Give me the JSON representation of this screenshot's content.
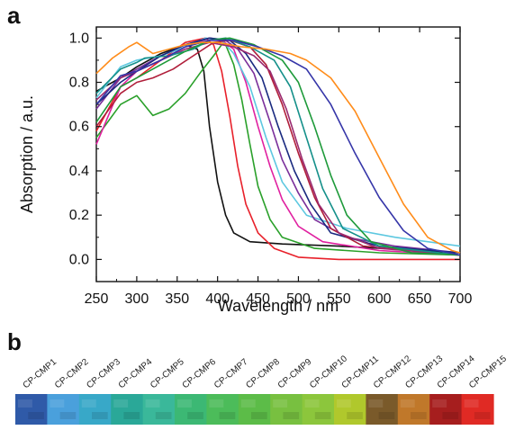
{
  "panels": {
    "a": "a",
    "b": "b"
  },
  "chart_data": {
    "type": "line",
    "xlabel": "Wavelength / nm",
    "ylabel": "Absorption / a.u.",
    "xlim": [
      250,
      700
    ],
    "ylim": [
      -0.1,
      1.05
    ],
    "xticks": [
      250,
      300,
      350,
      400,
      450,
      500,
      550,
      600,
      650,
      700
    ],
    "yticks": [
      0.0,
      0.2,
      0.4,
      0.6,
      0.8,
      1.0
    ],
    "grid": false,
    "legend": "none",
    "series": [
      {
        "color": "#111111",
        "points": [
          [
            250,
            0.76
          ],
          [
            280,
            0.82
          ],
          [
            300,
            0.87
          ],
          [
            330,
            0.93
          ],
          [
            360,
            0.97
          ],
          [
            375,
            0.95
          ],
          [
            383,
            0.85
          ],
          [
            390,
            0.6
          ],
          [
            400,
            0.35
          ],
          [
            410,
            0.2
          ],
          [
            420,
            0.12
          ],
          [
            440,
            0.08
          ],
          [
            480,
            0.07
          ],
          [
            550,
            0.06
          ],
          [
            650,
            0.04
          ],
          [
            700,
            0.03
          ]
        ]
      },
      {
        "color": "#e8202a",
        "points": [
          [
            250,
            0.58
          ],
          [
            280,
            0.78
          ],
          [
            300,
            0.82
          ],
          [
            330,
            0.9
          ],
          [
            360,
            0.98
          ],
          [
            385,
            1.0
          ],
          [
            395,
            0.97
          ],
          [
            405,
            0.85
          ],
          [
            415,
            0.65
          ],
          [
            425,
            0.42
          ],
          [
            435,
            0.25
          ],
          [
            450,
            0.12
          ],
          [
            470,
            0.05
          ],
          [
            500,
            0.01
          ],
          [
            550,
            0.0
          ],
          [
            700,
            0.0
          ]
        ]
      },
      {
        "color": "#2aa02a",
        "points": [
          [
            250,
            0.55
          ],
          [
            280,
            0.7
          ],
          [
            300,
            0.74
          ],
          [
            320,
            0.65
          ],
          [
            340,
            0.68
          ],
          [
            360,
            0.75
          ],
          [
            380,
            0.85
          ],
          [
            395,
            0.92
          ],
          [
            405,
            0.97
          ],
          [
            410,
            0.97
          ],
          [
            420,
            0.88
          ],
          [
            430,
            0.72
          ],
          [
            440,
            0.52
          ],
          [
            450,
            0.33
          ],
          [
            465,
            0.18
          ],
          [
            480,
            0.1
          ],
          [
            520,
            0.05
          ],
          [
            600,
            0.03
          ],
          [
            700,
            0.02
          ]
        ]
      },
      {
        "color": "#e020a0",
        "points": [
          [
            250,
            0.52
          ],
          [
            280,
            0.78
          ],
          [
            300,
            0.85
          ],
          [
            330,
            0.9
          ],
          [
            360,
            0.96
          ],
          [
            390,
            1.0
          ],
          [
            405,
            0.99
          ],
          [
            420,
            0.95
          ],
          [
            435,
            0.8
          ],
          [
            450,
            0.6
          ],
          [
            465,
            0.42
          ],
          [
            480,
            0.27
          ],
          [
            500,
            0.15
          ],
          [
            530,
            0.08
          ],
          [
            600,
            0.04
          ],
          [
            700,
            0.02
          ]
        ]
      },
      {
        "color": "#5dc8e0",
        "points": [
          [
            250,
            0.73
          ],
          [
            280,
            0.87
          ],
          [
            300,
            0.9
          ],
          [
            330,
            0.92
          ],
          [
            360,
            0.96
          ],
          [
            385,
            1.0
          ],
          [
            405,
            0.99
          ],
          [
            420,
            0.93
          ],
          [
            440,
            0.78
          ],
          [
            460,
            0.55
          ],
          [
            480,
            0.35
          ],
          [
            510,
            0.2
          ],
          [
            560,
            0.14
          ],
          [
            620,
            0.1
          ],
          [
            700,
            0.06
          ]
        ]
      },
      {
        "color": "#7a2f9a",
        "points": [
          [
            250,
            0.68
          ],
          [
            280,
            0.82
          ],
          [
            300,
            0.86
          ],
          [
            330,
            0.92
          ],
          [
            360,
            0.97
          ],
          [
            390,
            1.0
          ],
          [
            410,
            0.99
          ],
          [
            425,
            0.95
          ],
          [
            445,
            0.84
          ],
          [
            465,
            0.62
          ],
          [
            480,
            0.45
          ],
          [
            500,
            0.3
          ],
          [
            520,
            0.18
          ],
          [
            560,
            0.1
          ],
          [
            620,
            0.06
          ],
          [
            700,
            0.03
          ]
        ]
      },
      {
        "color": "#1a2a80",
        "points": [
          [
            250,
            0.7
          ],
          [
            280,
            0.8
          ],
          [
            300,
            0.85
          ],
          [
            330,
            0.92
          ],
          [
            360,
            0.97
          ],
          [
            390,
            1.0
          ],
          [
            415,
            0.99
          ],
          [
            435,
            0.93
          ],
          [
            455,
            0.82
          ],
          [
            475,
            0.6
          ],
          [
            495,
            0.4
          ],
          [
            515,
            0.25
          ],
          [
            540,
            0.12
          ],
          [
            600,
            0.06
          ],
          [
            700,
            0.03
          ]
        ]
      },
      {
        "color": "#b01e3a",
        "points": [
          [
            250,
            0.6
          ],
          [
            280,
            0.75
          ],
          [
            300,
            0.8
          ],
          [
            320,
            0.82
          ],
          [
            345,
            0.86
          ],
          [
            370,
            0.92
          ],
          [
            395,
            0.98
          ],
          [
            415,
            0.99
          ],
          [
            440,
            0.96
          ],
          [
            460,
            0.88
          ],
          [
            480,
            0.7
          ],
          [
            500,
            0.48
          ],
          [
            520,
            0.28
          ],
          [
            540,
            0.14
          ],
          [
            580,
            0.06
          ],
          [
            700,
            0.02
          ]
        ]
      },
      {
        "color": "#9a2a70",
        "points": [
          [
            250,
            0.72
          ],
          [
            280,
            0.82
          ],
          [
            300,
            0.85
          ],
          [
            330,
            0.9
          ],
          [
            360,
            0.95
          ],
          [
            390,
            0.98
          ],
          [
            420,
            0.96
          ],
          [
            445,
            0.92
          ],
          [
            465,
            0.85
          ],
          [
            485,
            0.68
          ],
          [
            505,
            0.45
          ],
          [
            525,
            0.25
          ],
          [
            550,
            0.12
          ],
          [
            600,
            0.05
          ],
          [
            700,
            0.02
          ]
        ]
      },
      {
        "color": "#15908a",
        "points": [
          [
            250,
            0.75
          ],
          [
            280,
            0.86
          ],
          [
            300,
            0.89
          ],
          [
            310,
            0.91
          ],
          [
            340,
            0.92
          ],
          [
            370,
            0.95
          ],
          [
            390,
            0.99
          ],
          [
            410,
            1.0
          ],
          [
            440,
            0.96
          ],
          [
            470,
            0.9
          ],
          [
            490,
            0.78
          ],
          [
            510,
            0.55
          ],
          [
            530,
            0.32
          ],
          [
            555,
            0.14
          ],
          [
            600,
            0.06
          ],
          [
            700,
            0.02
          ]
        ]
      },
      {
        "color": "#1e9a3a",
        "points": [
          [
            250,
            0.62
          ],
          [
            280,
            0.78
          ],
          [
            300,
            0.82
          ],
          [
            330,
            0.88
          ],
          [
            360,
            0.94
          ],
          [
            390,
            0.99
          ],
          [
            415,
            1.0
          ],
          [
            445,
            0.97
          ],
          [
            480,
            0.9
          ],
          [
            500,
            0.8
          ],
          [
            520,
            0.6
          ],
          [
            540,
            0.38
          ],
          [
            560,
            0.2
          ],
          [
            590,
            0.08
          ],
          [
            640,
            0.03
          ],
          [
            700,
            0.02
          ]
        ]
      },
      {
        "color": "#3535a8",
        "points": [
          [
            250,
            0.7
          ],
          [
            280,
            0.83
          ],
          [
            300,
            0.85
          ],
          [
            330,
            0.9
          ],
          [
            360,
            0.96
          ],
          [
            390,
            0.99
          ],
          [
            420,
            0.99
          ],
          [
            450,
            0.96
          ],
          [
            480,
            0.92
          ],
          [
            510,
            0.86
          ],
          [
            540,
            0.7
          ],
          [
            570,
            0.48
          ],
          [
            600,
            0.28
          ],
          [
            630,
            0.13
          ],
          [
            660,
            0.05
          ],
          [
            700,
            0.02
          ]
        ]
      },
      {
        "color": "#ff8c1a",
        "points": [
          [
            250,
            0.84
          ],
          [
            270,
            0.91
          ],
          [
            290,
            0.96
          ],
          [
            300,
            0.98
          ],
          [
            320,
            0.93
          ],
          [
            340,
            0.95
          ],
          [
            360,
            0.97
          ],
          [
            380,
            0.98
          ],
          [
            400,
            0.98
          ],
          [
            430,
            0.96
          ],
          [
            460,
            0.95
          ],
          [
            490,
            0.93
          ],
          [
            510,
            0.9
          ],
          [
            540,
            0.82
          ],
          [
            570,
            0.67
          ],
          [
            600,
            0.46
          ],
          [
            630,
            0.25
          ],
          [
            660,
            0.1
          ],
          [
            690,
            0.04
          ],
          [
            700,
            0.03
          ]
        ]
      }
    ]
  },
  "swatches": [
    {
      "label": "CP-CMP1",
      "color": "#2f5aa8"
    },
    {
      "label": "CP-CMP2",
      "color": "#4aa0dc"
    },
    {
      "label": "CP-CMP3",
      "color": "#38a8c8"
    },
    {
      "label": "CP-CMP4",
      "color": "#2aa898"
    },
    {
      "label": "CP-CMP5",
      "color": "#3ab89a"
    },
    {
      "label": "CP-CMP6",
      "color": "#3cb874"
    },
    {
      "label": "CP-CMP7",
      "color": "#4cbc5a"
    },
    {
      "label": "CP-CMP8",
      "color": "#5cbc48"
    },
    {
      "label": "CP-CMP9",
      "color": "#78c040"
    },
    {
      "label": "CP-CMP10",
      "color": "#8cc63c"
    },
    {
      "label": "CP-CMP11",
      "color": "#b0c82c"
    },
    {
      "label": "CP-CMP12",
      "color": "#7a5a2a"
    },
    {
      "label": "CP-CMP13",
      "color": "#c0782a"
    },
    {
      "label": "CP-CMP14",
      "color": "#a61e1e"
    },
    {
      "label": "CP-CMP15",
      "color": "#e02a24"
    }
  ]
}
